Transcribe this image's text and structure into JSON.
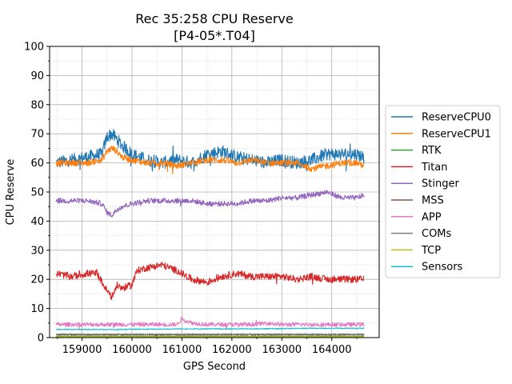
{
  "chart_data": {
    "type": "line",
    "title": "Rec 35:258 CPU Reserve",
    "subtitle": "[P4-05*.T04]",
    "xlabel": "GPS Second",
    "ylabel": "CPU Reserve",
    "xlim": [
      158350,
      164950
    ],
    "ylim": [
      0,
      100
    ],
    "x_ticks": [
      159000,
      160000,
      161000,
      162000,
      163000,
      164000
    ],
    "y_ticks": [
      0,
      10,
      20,
      30,
      40,
      50,
      60,
      70,
      80,
      90,
      100
    ],
    "grid": "major solid, minor dotted",
    "legend_position": "right",
    "x_range_data": [
      158480,
      164650
    ],
    "series": [
      {
        "name": "ReserveCPU0",
        "color": "#1f77b4",
        "x": [
          158480,
          158800,
          159100,
          159400,
          159500,
          159600,
          159700,
          159800,
          160000,
          160300,
          160600,
          160900,
          161200,
          161500,
          161800,
          162100,
          162400,
          162700,
          163000,
          163300,
          163600,
          163900,
          164200,
          164500,
          164650
        ],
        "values": [
          60,
          61,
          62,
          63,
          69,
          70,
          68,
          66,
          63,
          61,
          60,
          61,
          60,
          63,
          64,
          62,
          61,
          60,
          61,
          60,
          61,
          63,
          63,
          63,
          62
        ]
      },
      {
        "name": "ReserveCPU1",
        "color": "#ff7f0e",
        "x": [
          158480,
          158800,
          159100,
          159400,
          159500,
          159600,
          159700,
          159800,
          160000,
          160300,
          160600,
          160900,
          161200,
          161500,
          161800,
          162100,
          162400,
          162700,
          163000,
          163300,
          163600,
          163900,
          164200,
          164500,
          164650
        ],
        "values": [
          60,
          60,
          60,
          61,
          64,
          65,
          64,
          62,
          61,
          60,
          60,
          59,
          60,
          61,
          61,
          60,
          61,
          60,
          60,
          60,
          58,
          59,
          60,
          60,
          59
        ]
      },
      {
        "name": "RTK",
        "color": "#2ca02c",
        "x": [
          158480,
          159500,
          160500,
          161500,
          162500,
          163500,
          164650
        ],
        "values": [
          0.5,
          0.5,
          0.5,
          0.5,
          0.5,
          0.5,
          0.5
        ]
      },
      {
        "name": "Titan",
        "color": "#d62728",
        "x": [
          158480,
          158800,
          159100,
          159300,
          159400,
          159500,
          159600,
          159700,
          159800,
          160000,
          160100,
          160300,
          160600,
          160900,
          161200,
          161500,
          161800,
          162100,
          162400,
          162700,
          163000,
          163300,
          163600,
          163900,
          164200,
          164500,
          164650
        ],
        "values": [
          22,
          21,
          22,
          22,
          19,
          16,
          14,
          18,
          17,
          18,
          23,
          24,
          25,
          23,
          20,
          19,
          21,
          22,
          21,
          21,
          21,
          20,
          21,
          20,
          20,
          20,
          20
        ]
      },
      {
        "name": "Stinger",
        "color": "#9467bd",
        "x": [
          158480,
          158800,
          159100,
          159400,
          159500,
          159600,
          159700,
          159800,
          160000,
          160300,
          160600,
          160900,
          161200,
          161500,
          161800,
          162100,
          162400,
          162700,
          163000,
          163300,
          163600,
          163900,
          164200,
          164500,
          164650
        ],
        "values": [
          47,
          47,
          47,
          46,
          43,
          42,
          44,
          45,
          46,
          47,
          47,
          47,
          47,
          46,
          46,
          46,
          47,
          47,
          48,
          48,
          49,
          50,
          48,
          48,
          49
        ]
      },
      {
        "name": "MSS",
        "color": "#8c564b",
        "x": [
          158480,
          159500,
          160500,
          161500,
          162500,
          163500,
          164650
        ],
        "values": [
          1,
          1,
          1,
          1,
          1,
          1,
          1
        ]
      },
      {
        "name": "APP",
        "color": "#e377c2",
        "x": [
          158480,
          158800,
          159100,
          159400,
          159700,
          160000,
          160300,
          160600,
          160900,
          161000,
          161200,
          161500,
          161800,
          162100,
          162400,
          162700,
          163000,
          163300,
          163600,
          163900,
          164200,
          164500,
          164650
        ],
        "values": [
          4.5,
          4.5,
          4.5,
          4.5,
          4.5,
          4.5,
          4.5,
          4.5,
          4.5,
          6.5,
          5,
          4.5,
          4.5,
          4.5,
          4.5,
          5,
          4.5,
          4.5,
          4.5,
          4.5,
          4.5,
          4.5,
          4.5
        ]
      },
      {
        "name": "COMs",
        "color": "#7f7f7f",
        "x": [
          158480,
          159500,
          160500,
          161500,
          162500,
          163500,
          164650
        ],
        "values": [
          1.2,
          1.2,
          1.2,
          1.2,
          1.2,
          1.2,
          1.2
        ]
      },
      {
        "name": "TCP",
        "color": "#bcbd22",
        "x": [
          158480,
          159500,
          160500,
          161500,
          162500,
          163500,
          164650
        ],
        "values": [
          0.3,
          0.3,
          0.3,
          0.3,
          0.3,
          0.3,
          0.3
        ]
      },
      {
        "name": "Sensors",
        "color": "#17becf",
        "x": [
          158480,
          159500,
          160500,
          161000,
          161500,
          162500,
          163500,
          164650
        ],
        "values": [
          2.8,
          2.8,
          2.9,
          3,
          3,
          3,
          3.2,
          3.2
        ]
      }
    ]
  }
}
